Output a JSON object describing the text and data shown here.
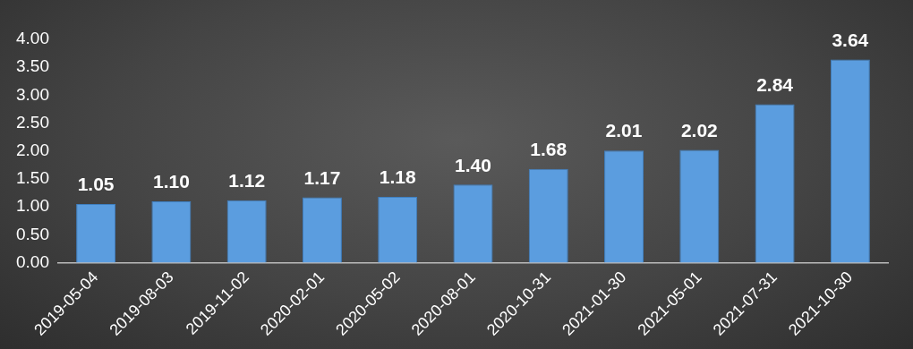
{
  "chart_data": {
    "type": "bar",
    "categories": [
      "2019-05-04",
      "2019-08-03",
      "2019-11-02",
      "2020-02-01",
      "2020-05-02",
      "2020-08-01",
      "2020-10-31",
      "2021-01-30",
      "2021-05-01",
      "2021-07-31",
      "2021-10-30"
    ],
    "values": [
      1.05,
      1.1,
      1.12,
      1.17,
      1.18,
      1.4,
      1.68,
      2.01,
      2.02,
      2.84,
      3.64
    ],
    "value_labels": [
      "1.05",
      "1.10",
      "1.12",
      "1.17",
      "1.18",
      "1.40",
      "1.68",
      "2.01",
      "2.02",
      "2.84",
      "3.64"
    ],
    "color": "#5b9ddf",
    "ylim": [
      0,
      4
    ],
    "yticks": [
      {
        "value": 0,
        "label": "0.00"
      },
      {
        "value": 0.5,
        "label": "0.50"
      },
      {
        "value": 1,
        "label": "1.00"
      },
      {
        "value": 1.5,
        "label": "1.50"
      },
      {
        "value": 2,
        "label": "2.00"
      },
      {
        "value": 2.5,
        "label": "2.50"
      },
      {
        "value": 3,
        "label": "3.00"
      },
      {
        "value": 3.5,
        "label": "3.50"
      },
      {
        "value": 4,
        "label": "4.00"
      }
    ],
    "grid": false,
    "legend": false
  }
}
